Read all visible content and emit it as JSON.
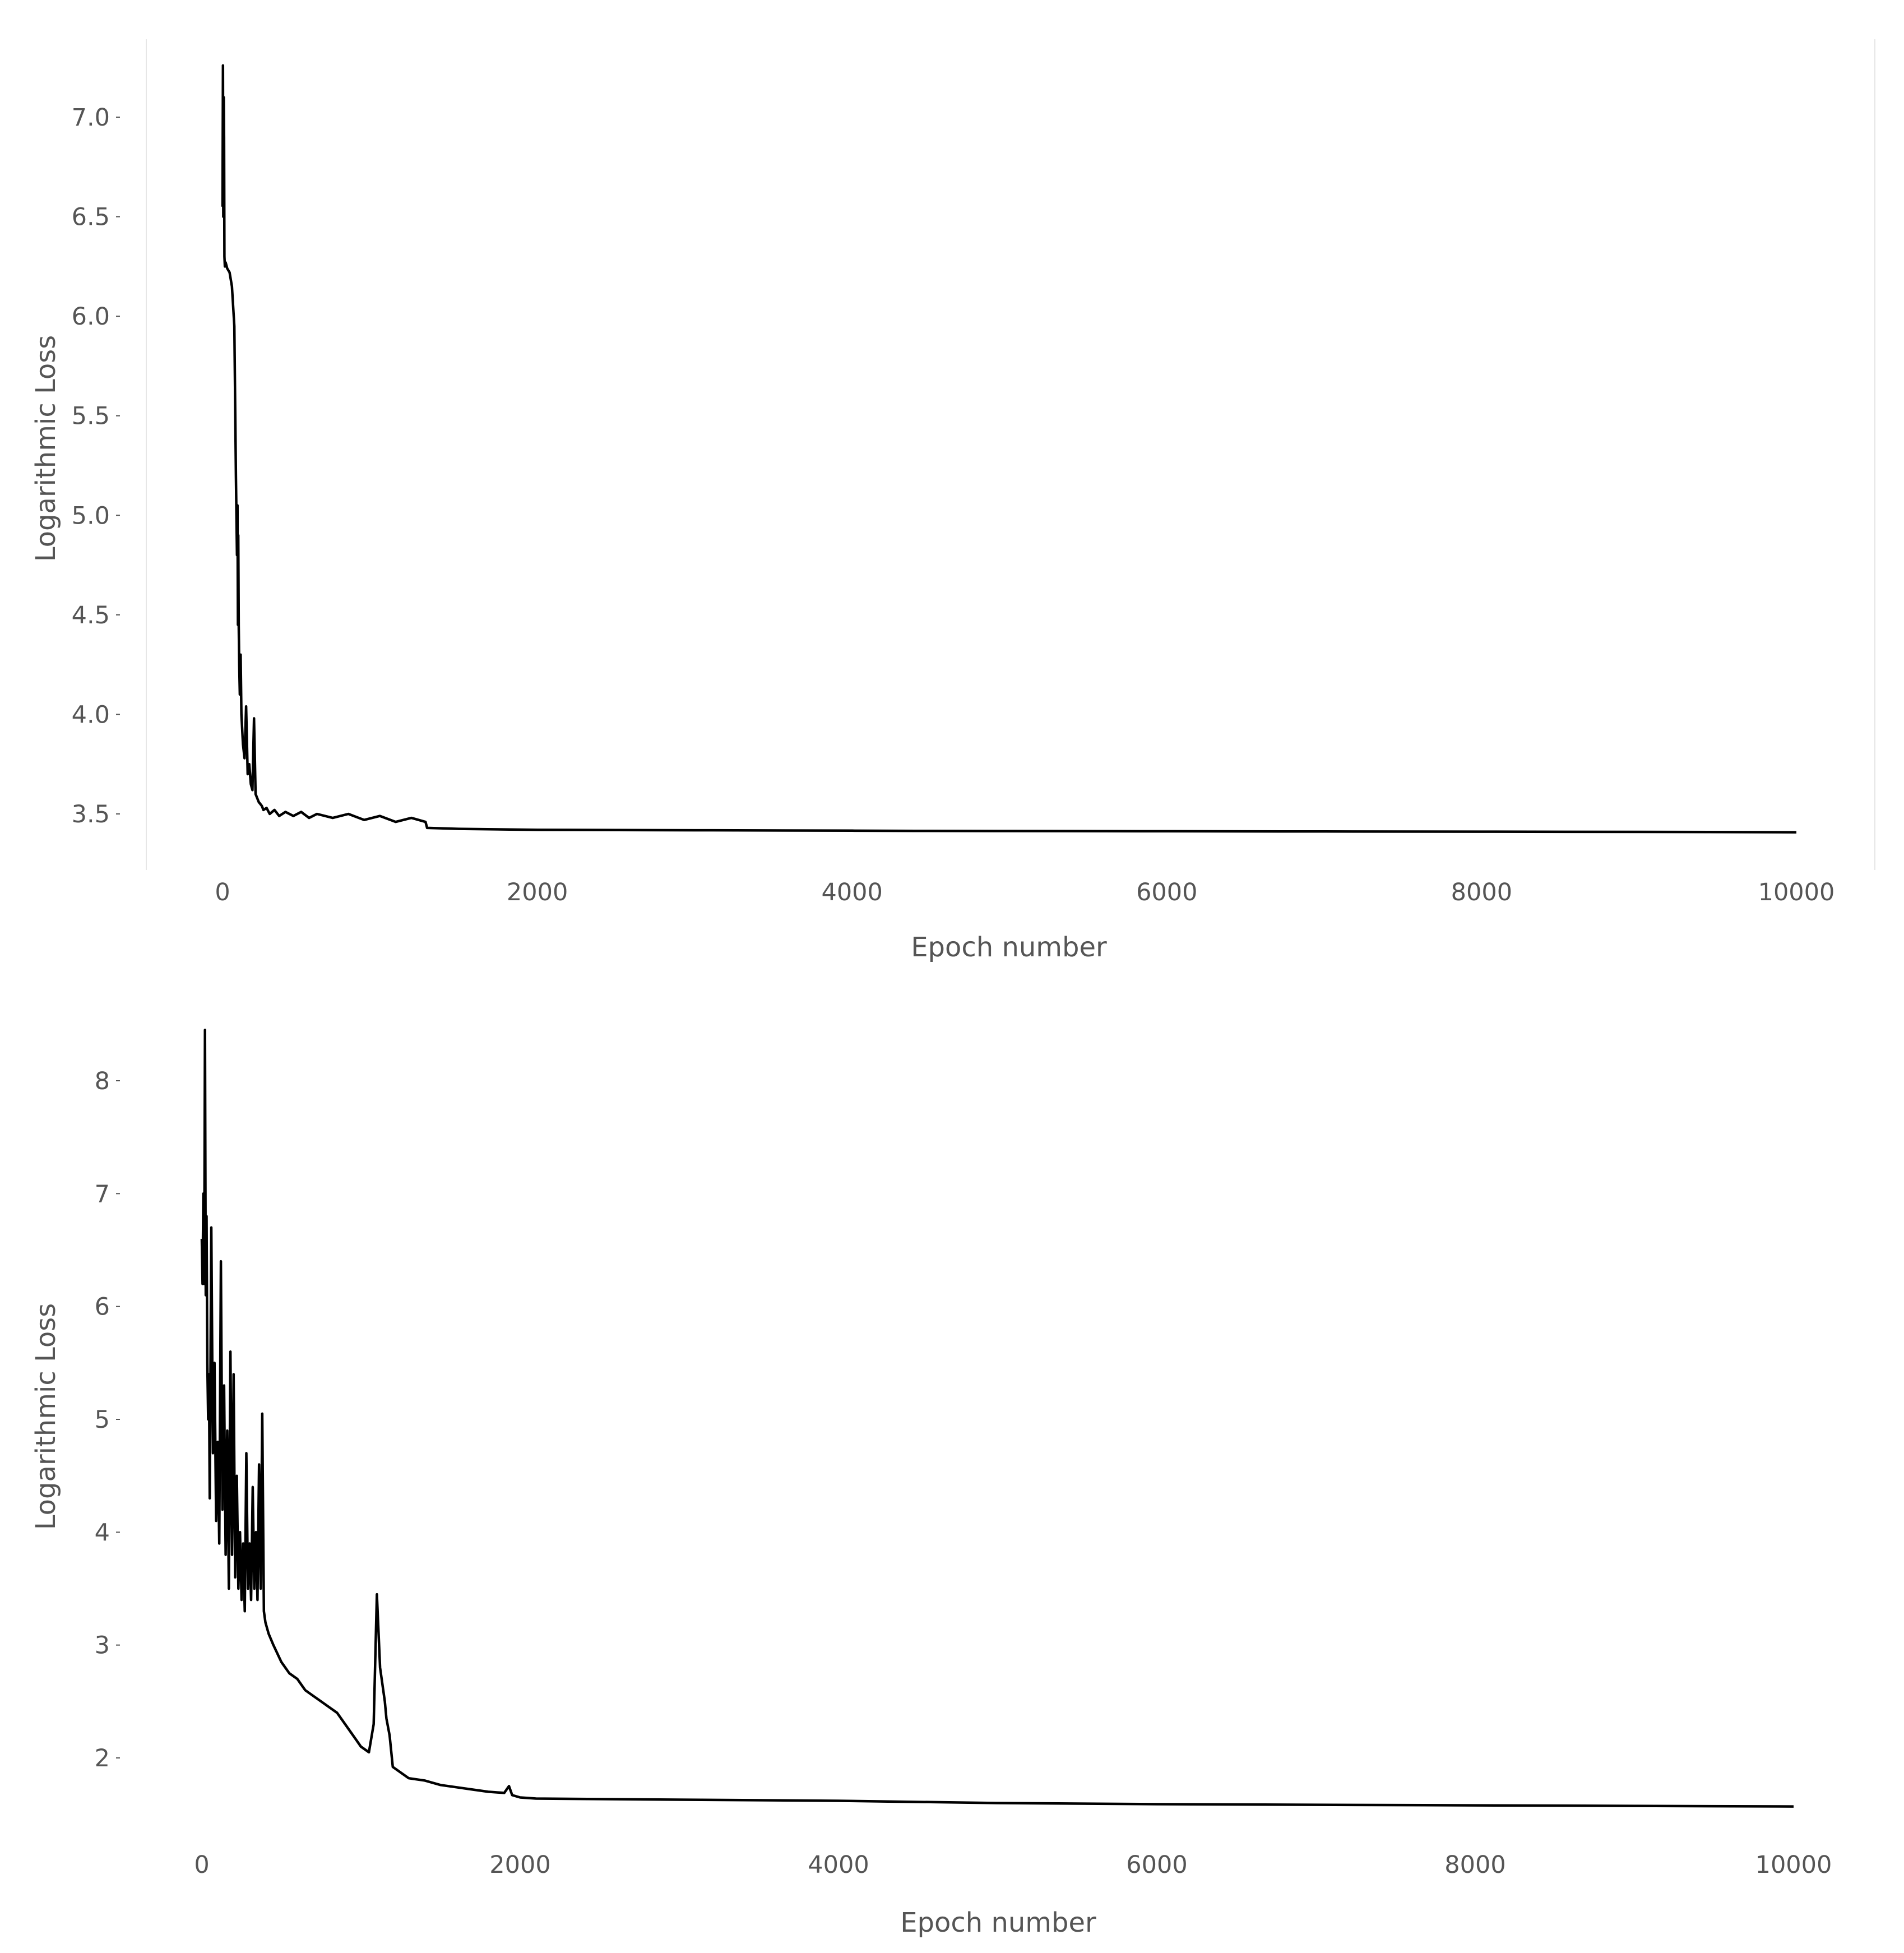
{
  "chart_data": [
    {
      "type": "line",
      "title": "",
      "xlabel": "Epoch number",
      "ylabel": "Logarithmic Loss",
      "xlim": [
        -500,
        10500
      ],
      "ylim": [
        3.22,
        7.4
      ],
      "xticks": [
        0,
        2000,
        4000,
        6000,
        8000,
        10000
      ],
      "xtick_labels": [
        "0",
        "2000",
        "4000",
        "6000",
        "8000",
        "10000"
      ],
      "yticks": [
        3.5,
        4.0,
        4.5,
        5.0,
        5.5,
        6.0,
        6.5,
        7.0
      ],
      "ytick_labels": [
        "3.5",
        "4.0",
        "4.5",
        "5.0",
        "5.5",
        "6.0",
        "6.5",
        "7.0"
      ],
      "grid": false,
      "series": [
        {
          "color": "#000000",
          "x": [
            0,
            3,
            5,
            8,
            10,
            12,
            15,
            20,
            30,
            45,
            60,
            75,
            85,
            92,
            95,
            98,
            100,
            103,
            106,
            110,
            115,
            120,
            130,
            140,
            150,
            160,
            170,
            180,
            190,
            200,
            210,
            220,
            230,
            240,
            250,
            260,
            280,
            300,
            330,
            360,
            400,
            450,
            500,
            550,
            600,
            700,
            800,
            900,
            1000,
            1100,
            1200,
            1290,
            1300,
            1500,
            2000,
            3000,
            4000,
            4400,
            5000,
            6000,
            7000,
            8000,
            9000,
            10000
          ],
          "y": [
            6.55,
            7.26,
            6.5,
            7.1,
            6.9,
            6.3,
            6.25,
            6.27,
            6.24,
            6.22,
            6.15,
            5.95,
            5.2,
            4.8,
            5.05,
            4.45,
            4.9,
            4.45,
            4.25,
            4.1,
            4.3,
            4.0,
            3.85,
            3.78,
            4.04,
            3.7,
            3.75,
            3.65,
            3.62,
            3.98,
            3.6,
            3.58,
            3.56,
            3.55,
            3.54,
            3.52,
            3.53,
            3.5,
            3.52,
            3.49,
            3.51,
            3.49,
            3.51,
            3.48,
            3.5,
            3.48,
            3.5,
            3.47,
            3.49,
            3.46,
            3.48,
            3.46,
            3.43,
            3.425,
            3.42,
            3.418,
            3.416,
            3.415,
            3.414,
            3.413,
            3.412,
            3.411,
            3.41,
            3.408
          ]
        }
      ]
    },
    {
      "type": "line",
      "title": "",
      "xlabel": "Epoch number",
      "ylabel": "Logarithmic Loss",
      "xlim": [
        -500,
        10500
      ],
      "ylim": [
        1.35,
        8.6
      ],
      "xticks": [
        0,
        2000,
        4000,
        6000,
        8000,
        10000
      ],
      "xtick_labels": [
        "0",
        "2000",
        "4000",
        "6000",
        "8000",
        "10000"
      ],
      "yticks": [
        2,
        3,
        4,
        5,
        6,
        7,
        8
      ],
      "ytick_labels": [
        "2",
        "3",
        "4",
        "5",
        "6",
        "7",
        "8"
      ],
      "grid": false,
      "series": [
        {
          "color": "#000000",
          "x": [
            0,
            5,
            10,
            15,
            20,
            25,
            30,
            35,
            40,
            45,
            50,
            60,
            70,
            80,
            90,
            100,
            110,
            120,
            130,
            140,
            150,
            160,
            170,
            180,
            190,
            200,
            210,
            220,
            230,
            240,
            250,
            260,
            270,
            280,
            290,
            300,
            310,
            320,
            330,
            340,
            350,
            360,
            370,
            380,
            390,
            400,
            420,
            450,
            500,
            550,
            600,
            650,
            700,
            750,
            800,
            850,
            900,
            950,
            1000,
            1050,
            1080,
            1100,
            1120,
            1150,
            1160,
            1180,
            1200,
            1300,
            1400,
            1500,
            1600,
            1700,
            1800,
            1900,
            1930,
            1950,
            2000,
            2100,
            3000,
            4000,
            5000,
            6000,
            7000,
            8000,
            9000,
            10000
          ],
          "y": [
            6.6,
            6.2,
            7.0,
            6.2,
            8.45,
            6.1,
            6.8,
            5.5,
            5.0,
            5.4,
            4.3,
            6.7,
            4.7,
            5.5,
            4.1,
            4.8,
            3.9,
            6.4,
            4.2,
            5.3,
            3.8,
            4.9,
            3.5,
            5.6,
            3.8,
            5.4,
            3.6,
            4.5,
            3.5,
            4.0,
            3.4,
            3.9,
            3.3,
            4.7,
            3.5,
            3.9,
            3.4,
            4.4,
            3.5,
            4.0,
            3.4,
            4.6,
            3.5,
            5.05,
            3.3,
            3.2,
            3.1,
            3.0,
            2.85,
            2.75,
            2.7,
            2.6,
            2.55,
            2.5,
            2.45,
            2.4,
            2.3,
            2.2,
            2.1,
            2.05,
            2.3,
            3.45,
            2.8,
            2.5,
            2.35,
            2.2,
            1.92,
            1.82,
            1.8,
            1.76,
            1.74,
            1.72,
            1.7,
            1.69,
            1.75,
            1.67,
            1.65,
            1.64,
            1.63,
            1.62,
            1.6,
            1.59,
            1.585,
            1.58,
            1.575,
            1.57
          ]
        }
      ]
    }
  ]
}
